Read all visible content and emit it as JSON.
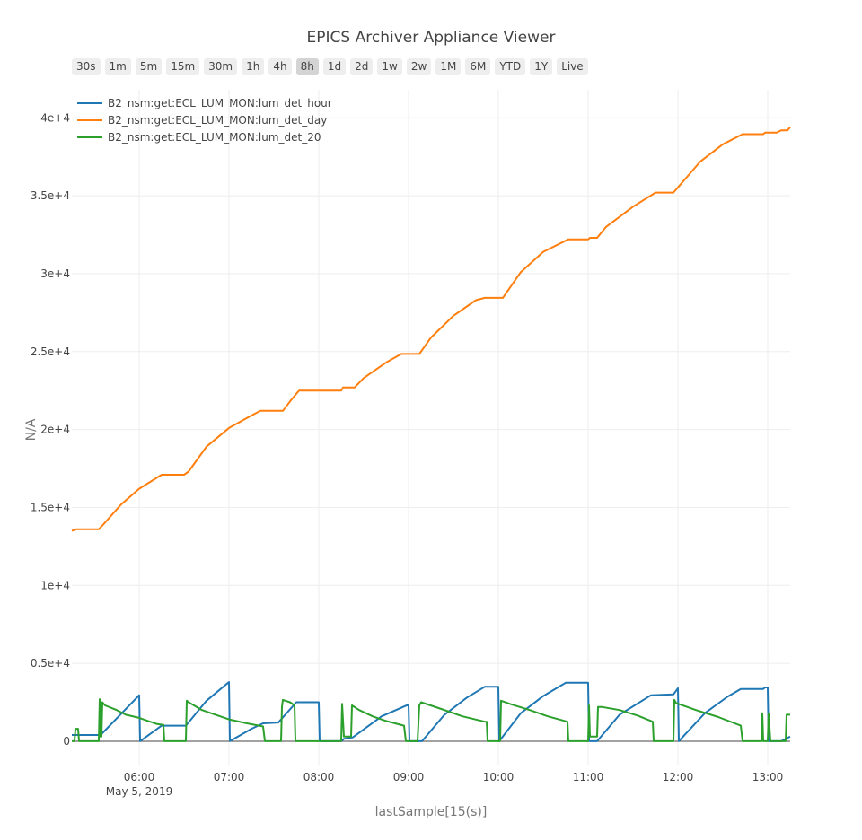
{
  "header": {
    "title": "EPICS Archiver Appliance Viewer"
  },
  "range_buttons": [
    {
      "label": "30s",
      "active": false
    },
    {
      "label": "1m",
      "active": false
    },
    {
      "label": "5m",
      "active": false
    },
    {
      "label": "15m",
      "active": false
    },
    {
      "label": "30m",
      "active": false
    },
    {
      "label": "1h",
      "active": false
    },
    {
      "label": "4h",
      "active": false
    },
    {
      "label": "8h",
      "active": true
    },
    {
      "label": "1d",
      "active": false
    },
    {
      "label": "2d",
      "active": false
    },
    {
      "label": "1w",
      "active": false
    },
    {
      "label": "2w",
      "active": false
    },
    {
      "label": "1M",
      "active": false
    },
    {
      "label": "6M",
      "active": false
    },
    {
      "label": "YTD",
      "active": false
    },
    {
      "label": "1Y",
      "active": false
    },
    {
      "label": "Live",
      "active": false
    }
  ],
  "chart_data": {
    "type": "line",
    "title": "EPICS Archiver Appliance Viewer",
    "xlabel": "lastSample[15(s)]",
    "ylabel": "N/A",
    "x_unit": "hours of day, May 5, 2019",
    "xlim": [
      5.25,
      13.25
    ],
    "ylim": [
      -1500,
      41800
    ],
    "x_ticks": [
      {
        "value": 6,
        "label": "06:00",
        "sublabel": "May 5, 2019"
      },
      {
        "value": 7,
        "label": "07:00"
      },
      {
        "value": 8,
        "label": "08:00"
      },
      {
        "value": 9,
        "label": "09:00"
      },
      {
        "value": 10,
        "label": "10:00"
      },
      {
        "value": 11,
        "label": "11:00"
      },
      {
        "value": 12,
        "label": "12:00"
      },
      {
        "value": 13,
        "label": "13:00"
      }
    ],
    "y_ticks": [
      {
        "value": 0,
        "label": "0"
      },
      {
        "value": 5000,
        "label": "0.5e+4"
      },
      {
        "value": 10000,
        "label": "1e+4"
      },
      {
        "value": 15000,
        "label": "1.5e+4"
      },
      {
        "value": 20000,
        "label": "2e+4"
      },
      {
        "value": 25000,
        "label": "2.5e+4"
      },
      {
        "value": 30000,
        "label": "3e+4"
      },
      {
        "value": 35000,
        "label": "3.5e+4"
      },
      {
        "value": 40000,
        "label": "4e+4"
      }
    ],
    "grid": true,
    "legend_position": "top-left",
    "series": [
      {
        "name": "B2_nsm:get:ECL_LUM_MON:lum_det_hour",
        "color": "#1f77b4",
        "points": [
          [
            5.25,
            400
          ],
          [
            5.55,
            400
          ],
          [
            5.57,
            400
          ],
          [
            6.0,
            2950
          ],
          [
            6.01,
            0
          ],
          [
            6.25,
            1000
          ],
          [
            6.5,
            1000
          ],
          [
            6.52,
            1000
          ],
          [
            6.75,
            2600
          ],
          [
            7.0,
            3800
          ],
          [
            7.01,
            0
          ],
          [
            7.25,
            800
          ],
          [
            7.38,
            1150
          ],
          [
            7.55,
            1200
          ],
          [
            7.75,
            2500
          ],
          [
            8.0,
            2500
          ],
          [
            8.01,
            0
          ],
          [
            8.25,
            0
          ],
          [
            8.28,
            150
          ],
          [
            8.38,
            250
          ],
          [
            8.7,
            1600
          ],
          [
            9.0,
            2350
          ],
          [
            9.01,
            0
          ],
          [
            9.15,
            0
          ],
          [
            9.4,
            1700
          ],
          [
            9.65,
            2800
          ],
          [
            9.85,
            3500
          ],
          [
            10.0,
            3500
          ],
          [
            10.01,
            0
          ],
          [
            10.25,
            1800
          ],
          [
            10.5,
            2900
          ],
          [
            10.75,
            3750
          ],
          [
            11.0,
            3750
          ],
          [
            11.01,
            0
          ],
          [
            11.1,
            0
          ],
          [
            11.35,
            1700
          ],
          [
            11.7,
            2950
          ],
          [
            11.95,
            3000
          ],
          [
            12.0,
            3400
          ],
          [
            12.01,
            0
          ],
          [
            12.3,
            1800
          ],
          [
            12.55,
            2850
          ],
          [
            12.7,
            3350
          ],
          [
            12.95,
            3350
          ],
          [
            12.97,
            3450
          ],
          [
            13.0,
            3450
          ],
          [
            13.01,
            0
          ],
          [
            13.15,
            0
          ],
          [
            13.25,
            300
          ]
        ]
      },
      {
        "name": "B2_nsm:get:ECL_LUM_MON:lum_det_day",
        "color": "#ff7f0e",
        "points": [
          [
            5.25,
            13500
          ],
          [
            5.3,
            13600
          ],
          [
            5.55,
            13600
          ],
          [
            5.6,
            13900
          ],
          [
            5.8,
            15200
          ],
          [
            6.0,
            16200
          ],
          [
            6.25,
            17100
          ],
          [
            6.5,
            17100
          ],
          [
            6.55,
            17300
          ],
          [
            6.75,
            18900
          ],
          [
            7.0,
            20100
          ],
          [
            7.25,
            20900
          ],
          [
            7.35,
            21200
          ],
          [
            7.6,
            21200
          ],
          [
            7.68,
            21800
          ],
          [
            7.78,
            22500
          ],
          [
            8.0,
            22500
          ],
          [
            8.25,
            22500
          ],
          [
            8.27,
            22700
          ],
          [
            8.4,
            22700
          ],
          [
            8.5,
            23300
          ],
          [
            8.75,
            24300
          ],
          [
            8.92,
            24850
          ],
          [
            9.12,
            24850
          ],
          [
            9.25,
            25900
          ],
          [
            9.5,
            27300
          ],
          [
            9.75,
            28300
          ],
          [
            9.85,
            28450
          ],
          [
            10.05,
            28450
          ],
          [
            10.25,
            30100
          ],
          [
            10.5,
            31400
          ],
          [
            10.78,
            32200
          ],
          [
            11.0,
            32200
          ],
          [
            11.02,
            32300
          ],
          [
            11.1,
            32300
          ],
          [
            11.2,
            33000
          ],
          [
            11.5,
            34300
          ],
          [
            11.75,
            35200
          ],
          [
            11.95,
            35200
          ],
          [
            12.25,
            37200
          ],
          [
            12.5,
            38300
          ],
          [
            12.72,
            38950
          ],
          [
            12.95,
            38950
          ],
          [
            12.97,
            39050
          ],
          [
            13.1,
            39050
          ],
          [
            13.15,
            39200
          ],
          [
            13.22,
            39200
          ],
          [
            13.25,
            39400
          ]
        ]
      },
      {
        "name": "B2_nsm:get:ECL_LUM_MON:lum_det_20",
        "color": "#2ca02c",
        "points": [
          [
            5.25,
            0
          ],
          [
            5.28,
            0
          ],
          [
            5.29,
            800
          ],
          [
            5.32,
            800
          ],
          [
            5.33,
            0
          ],
          [
            5.55,
            0
          ],
          [
            5.56,
            2700
          ],
          [
            5.57,
            300
          ],
          [
            5.58,
            300
          ],
          [
            5.59,
            2500
          ],
          [
            5.62,
            2300
          ],
          [
            5.75,
            2000
          ],
          [
            5.85,
            1700
          ],
          [
            6.0,
            1500
          ],
          [
            6.1,
            1300
          ],
          [
            6.2,
            1100
          ],
          [
            6.27,
            1050
          ],
          [
            6.28,
            0
          ],
          [
            6.52,
            0
          ],
          [
            6.53,
            2600
          ],
          [
            6.55,
            2500
          ],
          [
            6.7,
            2000
          ],
          [
            6.8,
            1800
          ],
          [
            7.0,
            1400
          ],
          [
            7.2,
            1150
          ],
          [
            7.38,
            950
          ],
          [
            7.4,
            0
          ],
          [
            7.58,
            0
          ],
          [
            7.59,
            2200
          ],
          [
            7.6,
            2650
          ],
          [
            7.68,
            2500
          ],
          [
            7.73,
            2300
          ],
          [
            7.74,
            0
          ],
          [
            8.25,
            0
          ],
          [
            8.26,
            2400
          ],
          [
            8.28,
            300
          ],
          [
            8.36,
            300
          ],
          [
            8.37,
            2300
          ],
          [
            8.45,
            2000
          ],
          [
            8.6,
            1600
          ],
          [
            8.75,
            1300
          ],
          [
            8.95,
            1000
          ],
          [
            8.97,
            0
          ],
          [
            9.1,
            0
          ],
          [
            9.12,
            2300
          ],
          [
            9.14,
            2500
          ],
          [
            9.35,
            2100
          ],
          [
            9.6,
            1600
          ],
          [
            9.85,
            1250
          ],
          [
            9.87,
            1250
          ],
          [
            9.88,
            0
          ],
          [
            10.02,
            0
          ],
          [
            10.03,
            2600
          ],
          [
            10.15,
            2350
          ],
          [
            10.35,
            2000
          ],
          [
            10.55,
            1600
          ],
          [
            10.77,
            1250
          ],
          [
            10.78,
            0
          ],
          [
            11.0,
            0
          ],
          [
            11.01,
            2300
          ],
          [
            11.02,
            300
          ],
          [
            11.1,
            300
          ],
          [
            11.11,
            2200
          ],
          [
            11.15,
            2200
          ],
          [
            11.35,
            2000
          ],
          [
            11.55,
            1650
          ],
          [
            11.72,
            1250
          ],
          [
            11.73,
            0
          ],
          [
            11.95,
            0
          ],
          [
            11.96,
            2650
          ],
          [
            11.98,
            2450
          ],
          [
            12.2,
            2000
          ],
          [
            12.45,
            1550
          ],
          [
            12.7,
            1000
          ],
          [
            12.72,
            0
          ],
          [
            12.93,
            0
          ],
          [
            12.94,
            1800
          ],
          [
            12.95,
            0
          ],
          [
            13.0,
            0
          ],
          [
            13.01,
            1800
          ],
          [
            13.03,
            0
          ],
          [
            13.2,
            0
          ],
          [
            13.21,
            1700
          ],
          [
            13.25,
            1700
          ]
        ]
      }
    ]
  }
}
